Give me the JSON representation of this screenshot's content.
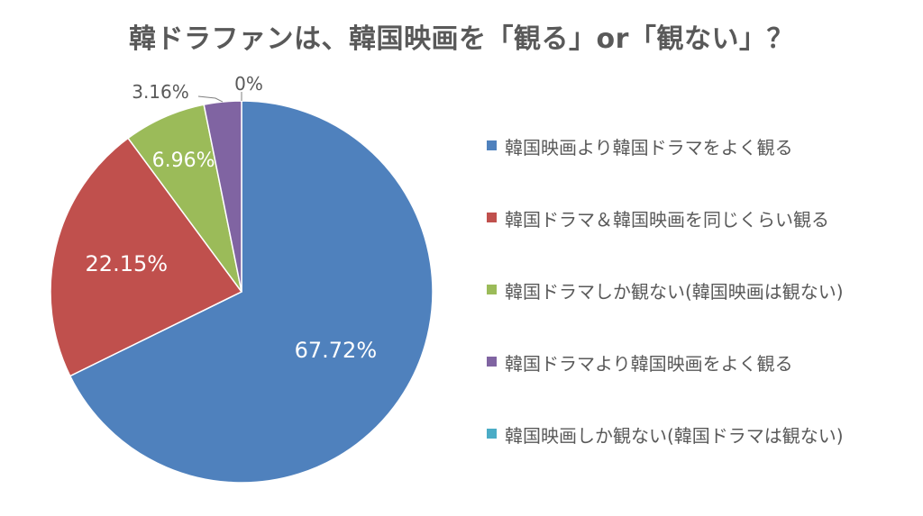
{
  "chart_data": {
    "type": "pie",
    "title": "韓ドラファンは、韓国映画を「観る」or「観ない」？",
    "slices": [
      {
        "label": "韓国映画より韓国ドラマをよく観る",
        "value": 67.72,
        "data_label": "67.72%",
        "color": "#4F81BD"
      },
      {
        "label": "韓国ドラマ＆韓国映画を同じくらい観る",
        "value": 22.15,
        "data_label": "22.15%",
        "color": "#C0504D"
      },
      {
        "label": "韓国ドラマしか観ない(韓国映画は観ない)",
        "value": 6.96,
        "data_label": "6.96%",
        "color": "#9BBB59"
      },
      {
        "label": "韓国ドラマより韓国映画をよく観る",
        "value": 3.16,
        "data_label": "3.16%",
        "color": "#8064A2"
      },
      {
        "label": "韓国映画しか観ない(韓国ドラマは観ない)",
        "value": 0,
        "data_label": "0%",
        "color": "#4BACC6"
      }
    ],
    "legend_position": "right"
  }
}
